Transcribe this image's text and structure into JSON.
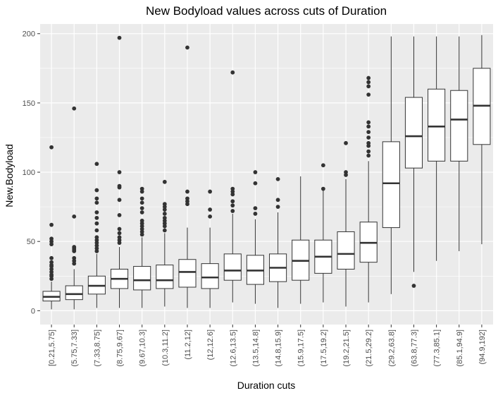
{
  "chart_data": {
    "type": "boxplot",
    "title": "New Bodyload values across cuts of Duration",
    "xlabel": "Duration cuts",
    "ylabel": "New.Bodyload",
    "ylim": [
      -10,
      207
    ],
    "yticks": [
      0,
      50,
      100,
      150,
      200
    ],
    "grid": true,
    "colors": {
      "panel": "#ebebeb",
      "grid": "#ffffff",
      "box_fill": "#ffffff",
      "box_line": "#333333",
      "outlier": "#333333"
    },
    "categories": [
      "[0.21,5.75]",
      "(5.75,7.33]",
      "(7.33,8.75]",
      "(8.75,9.67]",
      "(9.67,10.3]",
      "(10.3,11.2]",
      "(11.2,12]",
      "(12,12.6]",
      "(12.6,13.5]",
      "(13.5,14.8]",
      "(14.8,15.9]",
      "(15.9,17.5]",
      "(17.5,19.2]",
      "(19.2,21.5]",
      "(21.5,29.2]",
      "(29.2,63.8]",
      "(63.8,77.3]",
      "(77.3,85.1]",
      "(85.1,94.9]",
      "(94.9,192]"
    ],
    "boxes": [
      {
        "min": 1,
        "q1": 7,
        "median": 10,
        "q3": 14,
        "max": 21,
        "outliers": [
          23,
          25,
          26,
          28,
          30,
          32,
          33,
          35,
          38,
          48,
          50,
          52,
          62,
          118
        ]
      },
      {
        "min": 1,
        "q1": 8,
        "median": 12,
        "q3": 18,
        "max": 30,
        "outliers": [
          34,
          36,
          38,
          43,
          44,
          45,
          46,
          68,
          146
        ]
      },
      {
        "min": 2,
        "q1": 12,
        "median": 18,
        "q3": 25,
        "max": 41,
        "outliers": [
          43,
          45,
          47,
          49,
          51,
          53,
          58,
          63,
          67,
          71,
          78,
          81,
          87,
          106
        ]
      },
      {
        "min": 2,
        "q1": 16,
        "median": 23,
        "q3": 30,
        "max": 46,
        "outliers": [
          49,
          51,
          53,
          56,
          59,
          69,
          80,
          89,
          90,
          100,
          197
        ]
      },
      {
        "min": 2,
        "q1": 15,
        "median": 22,
        "q3": 32,
        "max": 53,
        "outliers": [
          55,
          57,
          59,
          61,
          63,
          65,
          71,
          74,
          78,
          81,
          86,
          88
        ]
      },
      {
        "min": 3,
        "q1": 16,
        "median": 22,
        "q3": 33,
        "max": 56,
        "outliers": [
          58,
          61,
          63,
          65,
          67,
          70,
          73,
          75,
          77,
          93
        ]
      },
      {
        "min": 2,
        "q1": 17,
        "median": 28,
        "q3": 37,
        "max": 60,
        "outliers": [
          77,
          79,
          81,
          86,
          190
        ]
      },
      {
        "min": 2,
        "q1": 16,
        "median": 24,
        "q3": 34,
        "max": 60,
        "outliers": [
          68,
          73,
          86
        ]
      },
      {
        "min": 6,
        "q1": 22,
        "median": 29,
        "q3": 41,
        "max": 70,
        "outliers": [
          72,
          76,
          79,
          84,
          86,
          88,
          172
        ]
      },
      {
        "min": 5,
        "q1": 19,
        "median": 29,
        "q3": 40,
        "max": 66,
        "outliers": [
          70,
          74,
          92,
          100
        ]
      },
      {
        "min": 2,
        "q1": 21,
        "median": 31,
        "q3": 41,
        "max": 71,
        "outliers": [
          75,
          80,
          95
        ]
      },
      {
        "min": 5,
        "q1": 22,
        "median": 36,
        "q3": 51,
        "max": 97,
        "outliers": []
      },
      {
        "min": 6,
        "q1": 27,
        "median": 39,
        "q3": 51,
        "max": 87,
        "outliers": [
          88,
          105
        ]
      },
      {
        "min": 3,
        "q1": 30,
        "median": 41,
        "q3": 57,
        "max": 95,
        "outliers": [
          98,
          100,
          121
        ]
      },
      {
        "min": 6,
        "q1": 35,
        "median": 49,
        "q3": 64,
        "max": 108,
        "outliers": [
          112,
          115,
          119,
          121,
          125,
          129,
          133,
          136,
          156,
          162,
          165,
          168
        ]
      },
      {
        "min": 12,
        "q1": 60,
        "median": 92,
        "q3": 122,
        "max": 198,
        "outliers": []
      },
      {
        "min": 28,
        "q1": 103,
        "median": 126,
        "q3": 154,
        "max": 198,
        "outliers": [
          18
        ]
      },
      {
        "min": 36,
        "q1": 108,
        "median": 133,
        "q3": 160,
        "max": 198,
        "outliers": []
      },
      {
        "min": 43,
        "q1": 108,
        "median": 138,
        "q3": 159,
        "max": 198,
        "outliers": []
      },
      {
        "min": 48,
        "q1": 120,
        "median": 148,
        "q3": 175,
        "max": 199,
        "outliers": []
      }
    ]
  }
}
